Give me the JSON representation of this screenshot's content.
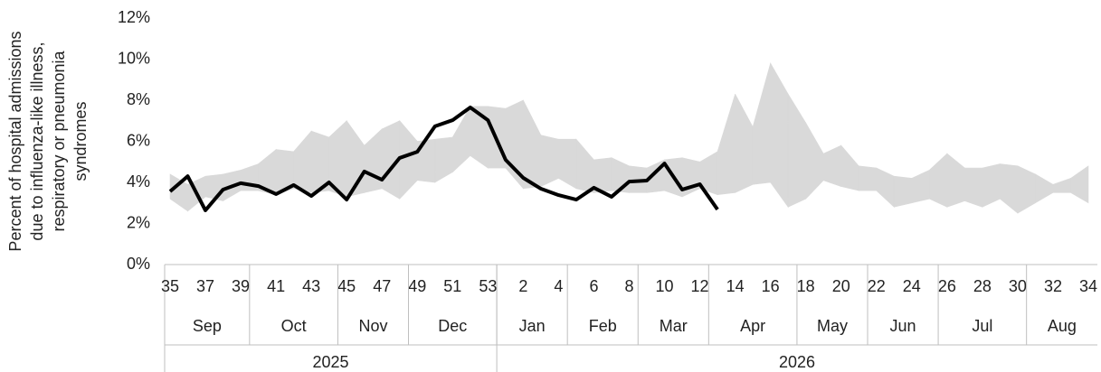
{
  "chart_data": {
    "type": "band-line",
    "ylabel": [
      "Percent of hospital admissions",
      "due to influenza-like illness,",
      "respiratory or pneumonia",
      "syndromes"
    ],
    "categories": [
      "35",
      null,
      "37",
      null,
      "39",
      null,
      "41",
      null,
      "43",
      null,
      "45",
      null,
      "47",
      null,
      "49",
      null,
      "51",
      null,
      "53",
      null,
      "2",
      null,
      "4",
      null,
      "6",
      null,
      "8",
      null,
      "10",
      null,
      "12",
      null,
      "14",
      null,
      "16",
      null,
      "18",
      null,
      "20",
      null,
      "22",
      null,
      "24",
      null,
      "26",
      null,
      "28",
      null,
      "30",
      null,
      "32",
      null,
      "34"
    ],
    "months": [
      "Sep",
      "Oct",
      "Nov",
      "Dec",
      "Jan",
      "Feb",
      "Mar",
      "Apr",
      "May",
      "Jun",
      "Jul",
      "Aug"
    ],
    "years": [
      "2025",
      "2026"
    ],
    "range": {
      "color": "#d9d9d9",
      "high": [
        4.4,
        3.9,
        4.3,
        4.4,
        4.6,
        4.9,
        5.6,
        5.5,
        6.5,
        6.2,
        7.0,
        5.8,
        6.6,
        7.0,
        6.0,
        6.1,
        6.2,
        7.7,
        7.7,
        7.6,
        8.0,
        6.3,
        6.1,
        6.1,
        5.1,
        5.2,
        4.8,
        4.7,
        5.1,
        5.2,
        5.0,
        5.5,
        8.3,
        6.7,
        9.8,
        8.3,
        6.9,
        5.4,
        5.8,
        4.8,
        4.7,
        4.3,
        4.2,
        4.6,
        5.4,
        4.7,
        4.7,
        4.9,
        4.8,
        4.4,
        3.9,
        4.2,
        4.8
      ],
      "low": [
        3.2,
        2.6,
        3.3,
        3.1,
        3.6,
        3.6,
        3.4,
        3.7,
        3.5,
        3.6,
        3.3,
        3.5,
        3.7,
        3.2,
        4.1,
        4.0,
        4.5,
        5.3,
        4.7,
        4.7,
        3.7,
        3.8,
        4.2,
        3.7,
        3.5,
        3.6,
        3.5,
        3.5,
        3.6,
        3.3,
        3.7,
        3.4,
        3.5,
        3.9,
        4.0,
        2.8,
        3.2,
        4.1,
        3.8,
        3.6,
        3.6,
        2.8,
        3.0,
        3.2,
        2.8,
        3.1,
        2.8,
        3.2,
        2.5,
        3.0,
        3.5,
        3.5,
        3.0
      ]
    },
    "series": [
      {
        "color": "#000000",
        "values": [
          3.56,
          4.3,
          2.64,
          3.65,
          3.96,
          3.82,
          3.43,
          3.87,
          3.34,
          4.0,
          3.16,
          4.53,
          4.13,
          5.19,
          5.49,
          6.73,
          7.03,
          7.65,
          7.03,
          5.1,
          4.22,
          3.69,
          3.38,
          3.16,
          3.74,
          3.3,
          4.04,
          4.09,
          4.92,
          3.65,
          3.91,
          2.68,
          null,
          null,
          null,
          null,
          null,
          null,
          null,
          null,
          null,
          null,
          null,
          null,
          null,
          null,
          null,
          null,
          null,
          null,
          null,
          null,
          null
        ]
      }
    ],
    "ylim": [
      0,
      12
    ],
    "yticks": [
      {
        "value": 0,
        "label": "0%"
      },
      {
        "value": 2,
        "label": "2%"
      },
      {
        "value": 4,
        "label": "4%"
      },
      {
        "value": 6,
        "label": "6%"
      },
      {
        "value": 8,
        "label": "8%"
      },
      {
        "value": 10,
        "label": "10%"
      },
      {
        "value": 12,
        "label": "12%"
      }
    ]
  }
}
